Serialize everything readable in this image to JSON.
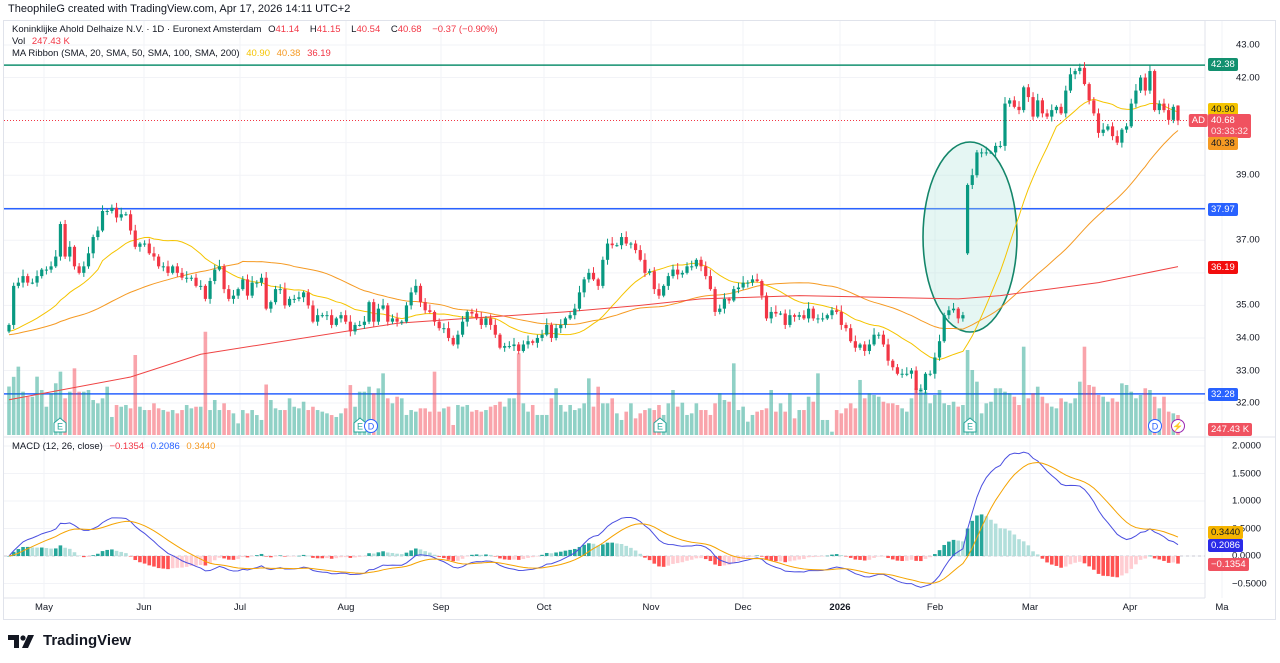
{
  "creator_line": "TheophileG created with TradingView.com, Apr 17, 2026 14:11 UTC+2",
  "legend": {
    "symbol": "Koninklijke Ahold Delhaize N.V. · 1D · Euronext Amsterdam",
    "o_label": "O",
    "o": "41.14",
    "h_label": "H",
    "h": "41.15",
    "l_label": "L",
    "l": "40.54",
    "c_label": "C",
    "c": "40.68",
    "change": "−0.37 (−0.90%)",
    "vol_label": "Vol",
    "vol": "247.43 K",
    "ma_label": "MA Ribbon (SMA, 20, SMA, 50, SMA, 100, SMA, 200)",
    "ma_values": [
      "40.90",
      "40.38",
      "36.19"
    ]
  },
  "macd_legend": {
    "label": "MACD (12, 26, close)",
    "hist": "−0.1354",
    "macd": "0.2086",
    "signal": "0.3440"
  },
  "price_axis": {
    "ticks": [
      "43.00",
      "42.00",
      "39.00",
      "37.00",
      "35.00",
      "34.00",
      "33.00",
      "32.00"
    ],
    "badges": {
      "resistance": "42.38",
      "sma20": "40.90",
      "symbol": "AD",
      "last": "40.68",
      "countdown": "03:33:32",
      "sma50": "40.38",
      "level_mid": "37.97",
      "sma200": "36.19",
      "support": "32.28",
      "volume": "247.43 K"
    }
  },
  "macd_axis": {
    "ticks": [
      "2.0000",
      "1.5000",
      "1.0000",
      "0.5000",
      "0.0000",
      "−0.5000"
    ]
  },
  "time_axis": [
    "May",
    "Jun",
    "Jul",
    "Aug",
    "Sep",
    "Oct",
    "Nov",
    "Dec",
    "2026",
    "Feb",
    "Mar",
    "Apr",
    "Ma"
  ],
  "events": [
    {
      "type": "earnings",
      "label": "E"
    },
    {
      "type": "earnings",
      "label": "E"
    },
    {
      "type": "dividend",
      "label": "D"
    },
    {
      "type": "earnings",
      "label": "E"
    },
    {
      "type": "earnings",
      "label": "E"
    },
    {
      "type": "dividend",
      "label": "D"
    },
    {
      "type": "split-or-news",
      "label": "⚡"
    }
  ],
  "footer": {
    "brand": "TradingView"
  },
  "colors": {
    "up": "#089981",
    "down": "#f23645",
    "sma20": "#f5c400",
    "sma50": "#f59a23",
    "sma200": "#ef4444",
    "macd": "#4b4fe0",
    "signal": "#f5a300",
    "resistance": "#12906f",
    "level": "#2962ff"
  },
  "chart_data": {
    "type": "candlestick",
    "title": "Koninklijke Ahold Delhaize N.V. · 1D · Euronext Amsterdam",
    "ylim": [
      31.7,
      43.5
    ],
    "horizontal_levels": [
      42.38,
      37.97,
      32.28
    ],
    "last_price": 40.68,
    "candles": {
      "close": [
        34.4,
        35.6,
        35.7,
        35.9,
        35.7,
        35.7,
        35.9,
        36.1,
        36.1,
        36.2,
        36.5,
        37.5,
        36.5,
        36.8,
        36.2,
        36.0,
        36.2,
        36.6,
        37.1,
        37.3,
        37.9,
        37.9,
        38.0,
        37.7,
        37.8,
        37.8,
        37.3,
        36.8,
        36.9,
        36.9,
        36.6,
        36.5,
        36.2,
        36.2,
        36.0,
        36.2,
        36.0,
        35.85,
        35.85,
        35.85,
        35.6,
        35.6,
        35.2,
        35.75,
        36.1,
        36.2,
        35.5,
        35.2,
        35.3,
        35.5,
        35.8,
        35.3,
        35.7,
        35.7,
        35.85,
        34.9,
        35.1,
        35.5,
        35.5,
        35.0,
        35.2,
        35.2,
        35.25,
        35.4,
        35.0,
        34.5,
        34.7,
        34.7,
        34.7,
        34.4,
        34.6,
        34.7,
        34.5,
        34.2,
        34.4,
        34.4,
        34.5,
        35.1,
        34.5,
        34.9,
        35.0,
        34.5,
        34.6,
        34.5,
        34.5,
        35.0,
        35.4,
        35.6,
        35.1,
        34.85,
        34.8,
        34.5,
        34.3,
        34.3,
        34.0,
        33.8,
        34.1,
        34.5,
        34.8,
        34.75,
        34.6,
        34.4,
        34.6,
        34.4,
        34.1,
        33.7,
        33.75,
        33.75,
        33.8,
        33.6,
        33.8,
        33.9,
        33.85,
        34.0,
        34.1,
        34.4,
        34.0,
        34.3,
        34.4,
        34.6,
        34.7,
        34.9,
        35.4,
        35.8,
        36.0,
        35.8,
        35.6,
        36.4,
        36.9,
        36.85,
        36.85,
        37.1,
        36.9,
        36.9,
        36.7,
        36.4,
        36.0,
        36.05,
        35.5,
        35.3,
        35.6,
        35.9,
        36.1,
        35.95,
        36.0,
        36.2,
        36.2,
        36.4,
        36.2,
        35.9,
        35.5,
        34.8,
        34.9,
        35.2,
        35.15,
        35.5,
        35.55,
        35.7,
        35.7,
        35.8,
        35.75,
        35.3,
        34.6,
        34.8,
        34.75,
        34.75,
        34.4,
        34.7,
        34.65,
        34.7,
        34.6,
        34.9,
        34.6,
        34.6,
        34.6,
        34.7,
        34.85,
        34.8,
        34.4,
        34.3,
        33.9,
        33.7,
        33.8,
        33.6,
        33.8,
        34.1,
        34.1,
        33.8,
        33.3,
        33.1,
        32.9,
        32.9,
        32.9,
        33.0,
        32.4,
        32.4,
        32.9,
        32.9,
        33.4,
        33.9,
        34.7,
        34.85,
        34.9,
        34.6,
        34.7,
        38.7,
        39.0,
        39.7,
        39.7,
        39.7,
        39.7,
        39.9,
        39.9,
        41.2,
        41.3,
        41.1,
        41.0,
        41.7,
        41.4,
        40.8,
        41.3,
        40.9,
        40.8,
        41.0,
        41.1,
        40.9,
        41.6,
        42.1,
        42.2,
        42.3,
        41.8,
        41.3,
        40.9,
        40.3,
        40.4,
        40.5,
        40.2,
        40.0,
        40.4,
        40.5,
        41.2,
        41.6,
        42.0,
        41.6,
        42.2,
        41.0,
        41.2,
        41.0,
        40.7,
        41.1,
        40.68
      ],
      "open_gaps": [
        {
          "index": 205,
          "open": 36.6
        },
        {
          "index": 250,
          "open": 41.14,
          "high": 41.15,
          "low": 40.54
        }
      ]
    },
    "volume_k": [
      600,
      720,
      846,
      536,
      474,
      474,
      722,
      557,
      350,
      515,
      640,
      784,
      454,
      536,
      825,
      536,
      536,
      557,
      433,
      392,
      454,
      598,
      223,
      371,
      350,
      371,
      330,
      990,
      350,
      309,
      309,
      392,
      330,
      309,
      289,
      309,
      268,
      309,
      371,
      330,
      350,
      350,
      1278,
      309,
      433,
      309,
      392,
      309,
      268,
      144,
      309,
      268,
      309,
      247,
      186,
      625,
      433,
      330,
      309,
      309,
      454,
      350,
      330,
      412,
      309,
      350,
      309,
      289,
      268,
      247,
      223,
      268,
      330,
      618,
      350,
      536,
      536,
      598,
      515,
      577,
      763,
      454,
      392,
      474,
      454,
      248,
      309,
      289,
      330,
      330,
      289,
      784,
      289,
      330,
      351,
      124,
      371,
      351,
      371,
      289,
      309,
      289,
      309,
      351,
      371,
      412,
      351,
      454,
      454,
      1011,
      392,
      289,
      371,
      248,
      248,
      248,
      454,
      578,
      371,
      289,
      371,
      309,
      330,
      392,
      701,
      351,
      598,
      392,
      392,
      454,
      268,
      186,
      289,
      392,
      206,
      268,
      309,
      330,
      309,
      371,
      248,
      392,
      557,
      351,
      400,
      248,
      268,
      392,
      309,
      309,
      248,
      392,
      516,
      433,
      412,
      887,
      309,
      351,
      165,
      248,
      289,
      309,
      330,
      557,
      289,
      392,
      289,
      516,
      206,
      309,
      309,
      474,
      412,
      763,
      186,
      186,
      41,
      309,
      268,
      330,
      392,
      330,
      681,
      454,
      516,
      495,
      474,
      412,
      392,
      392,
      371,
      330,
      289,
      454,
      578,
      578,
      536,
      392,
      495,
      557,
      392,
      371,
      412,
      351,
      371,
      1052,
      804,
      660,
      268,
      392,
      412,
      578,
      578,
      536,
      516,
      474,
      371,
      1093,
      454,
      516,
      598,
      474,
      392,
      351,
      330,
      454,
      412,
      392,
      454,
      660,
      1093,
      619,
      598,
      495,
      474,
      412,
      454,
      412,
      639,
      619,
      536,
      454,
      495,
      578,
      557,
      474,
      330,
      474,
      289,
      268,
      247.43
    ],
    "sma200": [
      [
        0,
        32.1
      ],
      [
        26,
        32.8
      ],
      [
        41,
        33.5
      ],
      [
        83,
        34.45
      ],
      [
        98,
        34.6
      ],
      [
        119,
        34.8
      ],
      [
        135,
        35.0
      ],
      [
        148,
        35.2
      ],
      [
        169,
        35.3
      ],
      [
        203,
        35.2
      ],
      [
        212,
        35.3
      ],
      [
        233,
        35.7
      ],
      [
        250,
        36.19
      ]
    ],
    "macd_last": {
      "macd": 0.2086,
      "signal": 0.344,
      "histogram": -0.1354
    },
    "macd_ylim": [
      -0.6,
      2.1
    ]
  }
}
